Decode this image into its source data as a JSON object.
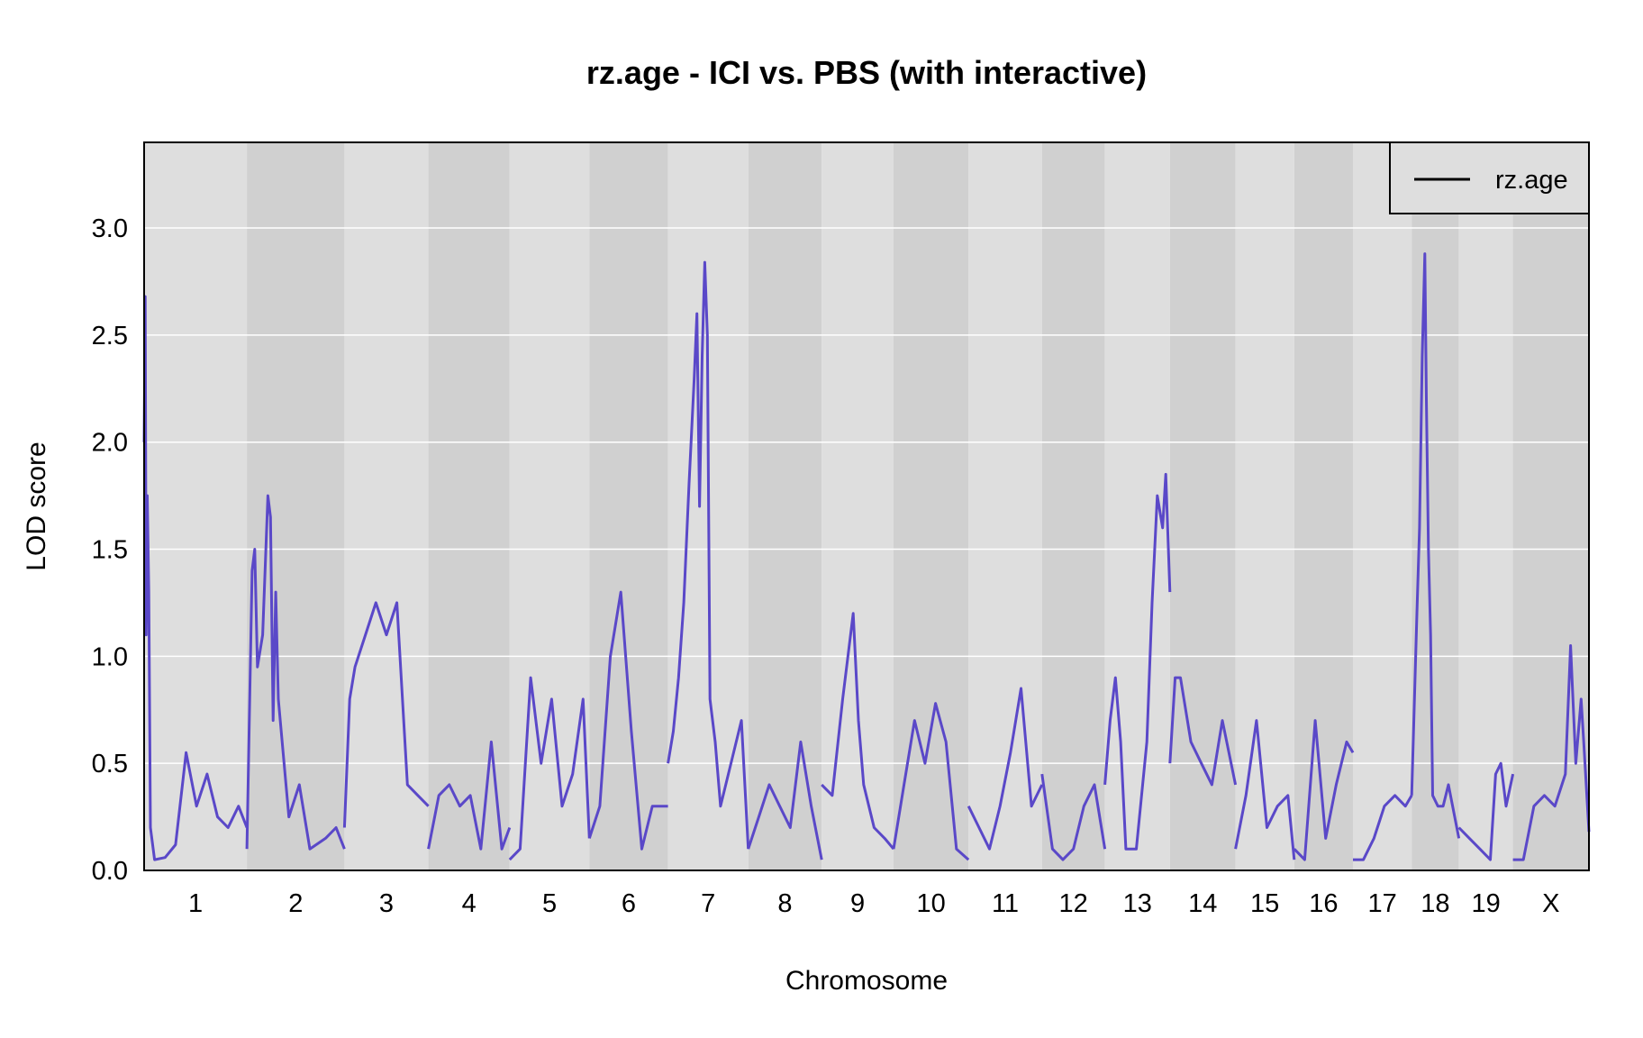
{
  "chart_data": {
    "type": "line",
    "title": "rz.age - ICI vs. PBS (with interactive)",
    "xlabel": "Chromosome",
    "ylabel": "LOD score",
    "ylim": [
      0,
      3.4
    ],
    "yticks": [
      "0.0",
      "0.5",
      "1.0",
      "1.5",
      "2.0",
      "2.5",
      "3.0"
    ],
    "grid": true,
    "legend_position": "top-right",
    "legend": [
      {
        "label": "rz.age",
        "color": "#000000"
      }
    ],
    "colors": {
      "line": "#5A48C8",
      "band_light": "#DEDEDE",
      "band_dark": "#D0D0D0"
    },
    "chromosomes": [
      {
        "label": "1",
        "start": 0,
        "end": 196,
        "points": [
          [
            0,
            2.0
          ],
          [
            2,
            2.68
          ],
          [
            4,
            1.1
          ],
          [
            6,
            1.75
          ],
          [
            9,
            1.3
          ],
          [
            12,
            0.2
          ],
          [
            20,
            0.05
          ],
          [
            40,
            0.06
          ],
          [
            60,
            0.12
          ],
          [
            80,
            0.55
          ],
          [
            100,
            0.3
          ],
          [
            120,
            0.45
          ],
          [
            140,
            0.25
          ],
          [
            160,
            0.2
          ],
          [
            180,
            0.3
          ],
          [
            196,
            0.2
          ]
        ]
      },
      {
        "label": "2",
        "start": 196,
        "end": 382,
        "points": [
          [
            0,
            0.1
          ],
          [
            10,
            1.4
          ],
          [
            15,
            1.5
          ],
          [
            20,
            0.95
          ],
          [
            30,
            1.1
          ],
          [
            40,
            1.75
          ],
          [
            45,
            1.65
          ],
          [
            50,
            0.7
          ],
          [
            55,
            1.3
          ],
          [
            60,
            0.8
          ],
          [
            80,
            0.25
          ],
          [
            100,
            0.4
          ],
          [
            120,
            0.1
          ],
          [
            150,
            0.15
          ],
          [
            170,
            0.2
          ],
          [
            186,
            0.1
          ]
        ]
      },
      {
        "label": "3",
        "start": 382,
        "end": 542,
        "points": [
          [
            0,
            0.2
          ],
          [
            10,
            0.8
          ],
          [
            20,
            0.95
          ],
          [
            40,
            1.1
          ],
          [
            60,
            1.25
          ],
          [
            80,
            1.1
          ],
          [
            100,
            1.25
          ],
          [
            120,
            0.4
          ],
          [
            140,
            0.35
          ],
          [
            160,
            0.3
          ]
        ]
      },
      {
        "label": "4",
        "start": 542,
        "end": 697,
        "points": [
          [
            0,
            0.1
          ],
          [
            20,
            0.35
          ],
          [
            40,
            0.4
          ],
          [
            60,
            0.3
          ],
          [
            80,
            0.35
          ],
          [
            100,
            0.1
          ],
          [
            120,
            0.6
          ],
          [
            140,
            0.1
          ],
          [
            155,
            0.2
          ]
        ]
      },
      {
        "label": "5",
        "start": 697,
        "end": 849,
        "points": [
          [
            0,
            0.05
          ],
          [
            20,
            0.1
          ],
          [
            40,
            0.9
          ],
          [
            60,
            0.5
          ],
          [
            80,
            0.8
          ],
          [
            100,
            0.3
          ],
          [
            120,
            0.45
          ],
          [
            140,
            0.8
          ],
          [
            152,
            0.15
          ]
        ]
      },
      {
        "label": "6",
        "start": 849,
        "end": 999,
        "points": [
          [
            0,
            0.15
          ],
          [
            20,
            0.3
          ],
          [
            40,
            1.0
          ],
          [
            60,
            1.3
          ],
          [
            80,
            0.65
          ],
          [
            100,
            0.1
          ],
          [
            120,
            0.3
          ],
          [
            150,
            0.3
          ]
        ]
      },
      {
        "label": "7",
        "start": 999,
        "end": 1152,
        "points": [
          [
            0,
            0.5
          ],
          [
            10,
            0.65
          ],
          [
            20,
            0.9
          ],
          [
            30,
            1.25
          ],
          [
            40,
            1.8
          ],
          [
            50,
            2.3
          ],
          [
            55,
            2.6
          ],
          [
            60,
            1.7
          ],
          [
            65,
            2.4
          ],
          [
            70,
            2.84
          ],
          [
            75,
            2.5
          ],
          [
            80,
            0.8
          ],
          [
            90,
            0.6
          ],
          [
            100,
            0.3
          ],
          [
            120,
            0.5
          ],
          [
            140,
            0.7
          ],
          [
            153,
            0.1
          ]
        ]
      },
      {
        "label": "8",
        "start": 1152,
        "end": 1292,
        "points": [
          [
            0,
            0.1
          ],
          [
            20,
            0.25
          ],
          [
            40,
            0.4
          ],
          [
            60,
            0.3
          ],
          [
            80,
            0.2
          ],
          [
            100,
            0.6
          ],
          [
            120,
            0.3
          ],
          [
            140,
            0.05
          ]
        ]
      },
      {
        "label": "9",
        "start": 1292,
        "end": 1429,
        "points": [
          [
            0,
            0.4
          ],
          [
            20,
            0.35
          ],
          [
            40,
            0.8
          ],
          [
            60,
            1.2
          ],
          [
            70,
            0.7
          ],
          [
            80,
            0.4
          ],
          [
            100,
            0.2
          ],
          [
            120,
            0.15
          ],
          [
            137,
            0.1
          ]
        ]
      },
      {
        "label": "10",
        "start": 1429,
        "end": 1572,
        "points": [
          [
            0,
            0.1
          ],
          [
            20,
            0.4
          ],
          [
            40,
            0.7
          ],
          [
            60,
            0.5
          ],
          [
            80,
            0.78
          ],
          [
            100,
            0.6
          ],
          [
            120,
            0.1
          ],
          [
            143,
            0.05
          ]
        ]
      },
      {
        "label": "11",
        "start": 1572,
        "end": 1712,
        "points": [
          [
            0,
            0.3
          ],
          [
            20,
            0.2
          ],
          [
            40,
            0.1
          ],
          [
            60,
            0.3
          ],
          [
            80,
            0.55
          ],
          [
            100,
            0.85
          ],
          [
            120,
            0.3
          ],
          [
            140,
            0.4
          ]
        ]
      },
      {
        "label": "12",
        "start": 1712,
        "end": 1832,
        "points": [
          [
            0,
            0.45
          ],
          [
            20,
            0.1
          ],
          [
            40,
            0.05
          ],
          [
            60,
            0.1
          ],
          [
            80,
            0.3
          ],
          [
            100,
            0.4
          ],
          [
            120,
            0.1
          ]
        ]
      },
      {
        "label": "13",
        "start": 1832,
        "end": 1956,
        "points": [
          [
            0,
            0.4
          ],
          [
            10,
            0.7
          ],
          [
            20,
            0.9
          ],
          [
            30,
            0.6
          ],
          [
            40,
            0.1
          ],
          [
            60,
            0.1
          ],
          [
            80,
            0.6
          ],
          [
            90,
            1.25
          ],
          [
            100,
            1.75
          ],
          [
            110,
            1.6
          ],
          [
            116,
            1.85
          ],
          [
            124,
            1.3
          ]
        ]
      },
      {
        "label": "14",
        "start": 1956,
        "end": 2081,
        "points": [
          [
            0,
            0.5
          ],
          [
            10,
            0.9
          ],
          [
            20,
            0.9
          ],
          [
            40,
            0.6
          ],
          [
            60,
            0.5
          ],
          [
            80,
            0.4
          ],
          [
            100,
            0.7
          ],
          [
            125,
            0.4
          ]
        ]
      },
      {
        "label": "15",
        "start": 2081,
        "end": 2193,
        "points": [
          [
            0,
            0.1
          ],
          [
            20,
            0.35
          ],
          [
            40,
            0.7
          ],
          [
            60,
            0.2
          ],
          [
            80,
            0.3
          ],
          [
            100,
            0.35
          ],
          [
            112,
            0.05
          ]
        ]
      },
      {
        "label": "16",
        "start": 2193,
        "end": 2305,
        "points": [
          [
            0,
            0.1
          ],
          [
            20,
            0.05
          ],
          [
            40,
            0.7
          ],
          [
            60,
            0.15
          ],
          [
            80,
            0.4
          ],
          [
            100,
            0.6
          ],
          [
            112,
            0.55
          ]
        ]
      },
      {
        "label": "17",
        "start": 2305,
        "end": 2417,
        "points": [
          [
            0,
            0.05
          ],
          [
            20,
            0.05
          ],
          [
            40,
            0.15
          ],
          [
            60,
            0.3
          ],
          [
            80,
            0.35
          ],
          [
            100,
            0.3
          ],
          [
            112,
            0.35
          ]
        ]
      },
      {
        "label": "18",
        "start": 2417,
        "end": 2507,
        "points": [
          [
            0,
            0.35
          ],
          [
            10,
            1.2
          ],
          [
            15,
            1.6
          ],
          [
            20,
            2.4
          ],
          [
            25,
            2.88
          ],
          [
            28,
            2.2
          ],
          [
            32,
            1.5
          ],
          [
            36,
            1.1
          ],
          [
            40,
            0.35
          ],
          [
            50,
            0.3
          ],
          [
            60,
            0.3
          ],
          [
            70,
            0.4
          ],
          [
            90,
            0.15
          ]
        ]
      },
      {
        "label": "19",
        "start": 2507,
        "end": 2610,
        "points": [
          [
            0,
            0.2
          ],
          [
            20,
            0.15
          ],
          [
            40,
            0.1
          ],
          [
            60,
            0.05
          ],
          [
            70,
            0.45
          ],
          [
            80,
            0.5
          ],
          [
            90,
            0.3
          ],
          [
            103,
            0.45
          ]
        ]
      },
      {
        "label": "X",
        "start": 2610,
        "end": 2755,
        "points": [
          [
            0,
            0.05
          ],
          [
            20,
            0.05
          ],
          [
            40,
            0.3
          ],
          [
            60,
            0.35
          ],
          [
            80,
            0.3
          ],
          [
            100,
            0.45
          ],
          [
            110,
            1.05
          ],
          [
            120,
            0.5
          ],
          [
            130,
            0.8
          ],
          [
            135,
            0.6
          ],
          [
            145,
            0.18
          ]
        ]
      }
    ]
  }
}
